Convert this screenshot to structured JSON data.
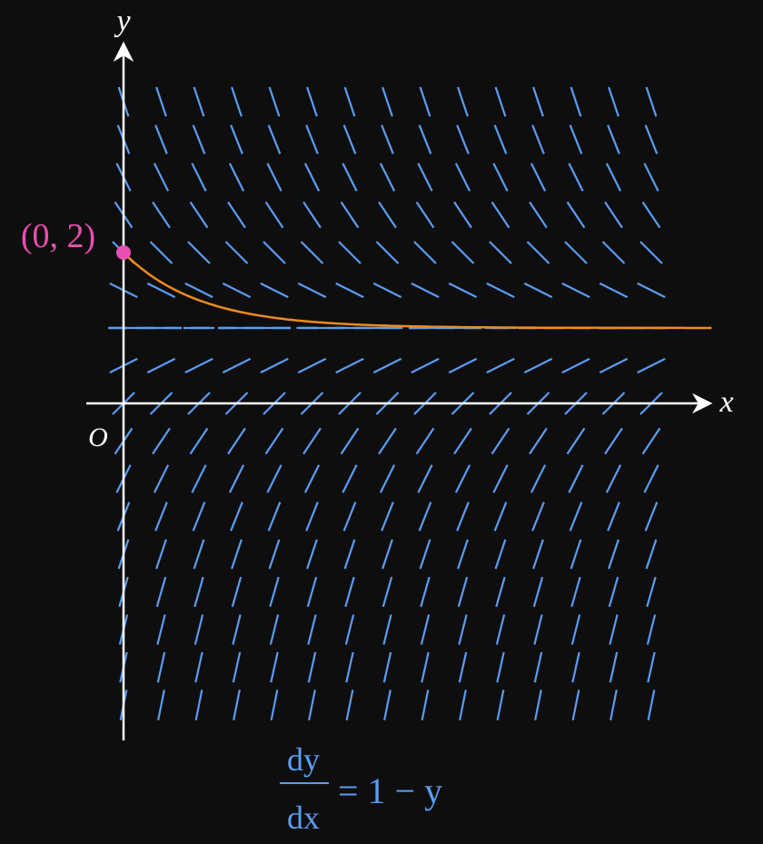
{
  "axes": {
    "x_label": "x",
    "y_label": "y",
    "origin_label": "O"
  },
  "point": {
    "label": "(0, 2)"
  },
  "equation": {
    "numerator": "dy",
    "denominator": "dx",
    "rhs": "= 1 − y"
  }
}
